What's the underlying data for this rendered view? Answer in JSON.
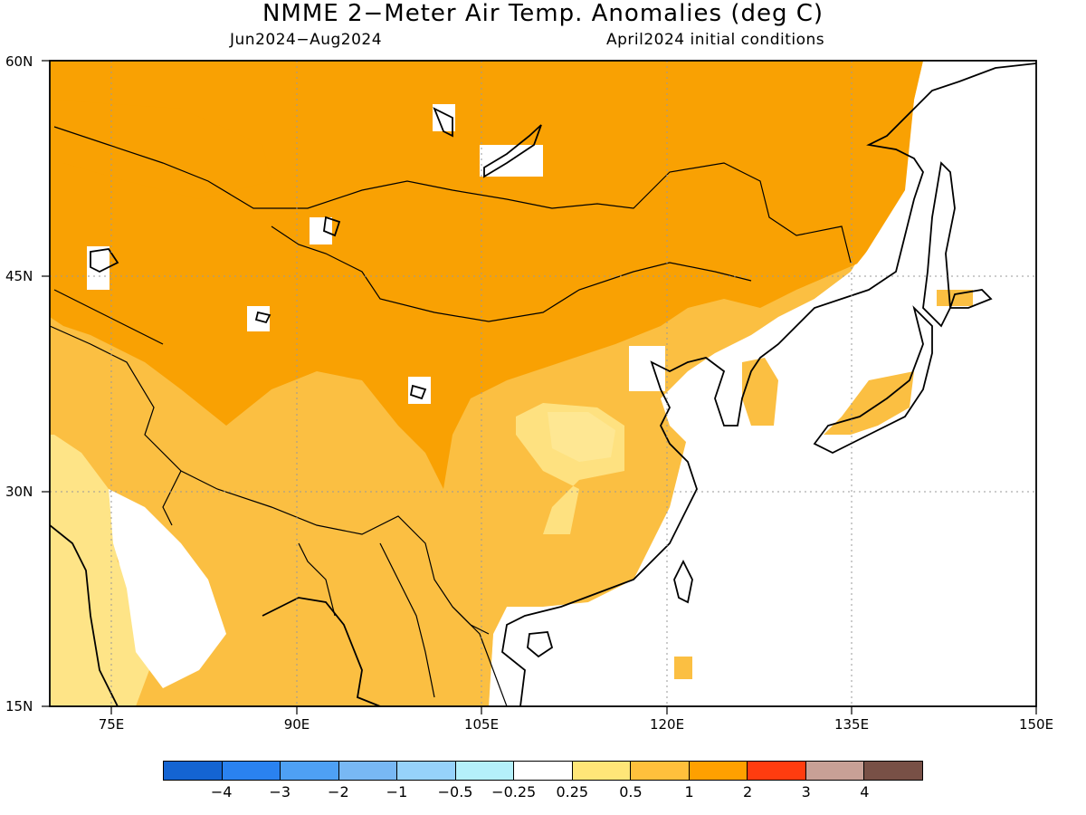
{
  "title": "NMME 2−Meter Air Temp. Anomalies (deg C)",
  "subtitle_left": "Jun2024−Aug2024",
  "subtitle_right": "April2024 initial conditions",
  "map": {
    "lon_range": [
      70,
      150
    ],
    "lat_range": [
      15,
      60
    ],
    "lat_labels": [
      "60N",
      "45N",
      "30N",
      "15N"
    ],
    "lon_labels": [
      "75E",
      "90E",
      "105E",
      "120E",
      "135E",
      "150E"
    ],
    "colors": {
      "lightyellow": "#fee487",
      "lightorange": "#fbbf42",
      "orange": "#f9a103",
      "ocean": "#ffffff",
      "coast": "#000000"
    }
  },
  "colorbar": {
    "colors": [
      "#1464d2",
      "#2a82f0",
      "#4ea0f4",
      "#78b8f4",
      "#96d2fa",
      "#b4f0fa",
      "#ffffff",
      "#ffe678",
      "#ffc03c",
      "#ffa000",
      "#ff3c0f",
      "#c8a096",
      "#785046"
    ],
    "tick_labels": [
      "−4",
      "−3",
      "−2",
      "−1",
      "−0.5",
      "−0.25",
      "0.25",
      "0.5",
      "1",
      "2",
      "3",
      "4"
    ]
  }
}
